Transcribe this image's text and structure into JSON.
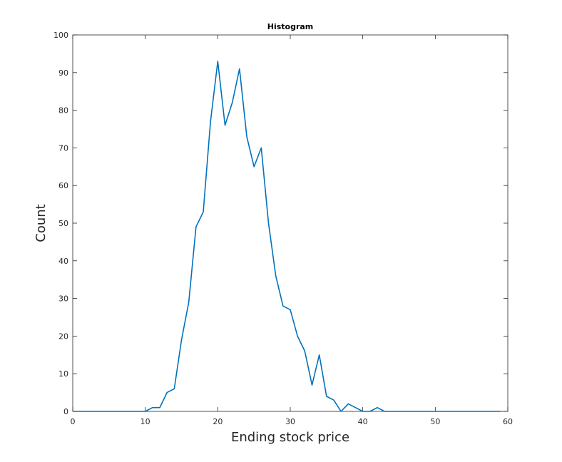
{
  "chart_data": {
    "type": "line",
    "title": "Histogram",
    "xlabel": "Ending stock price",
    "ylabel": "Count",
    "xlim": [
      0,
      60
    ],
    "ylim": [
      0,
      100
    ],
    "xticks": [
      0,
      10,
      20,
      30,
      40,
      50,
      60
    ],
    "yticks": [
      0,
      10,
      20,
      30,
      40,
      50,
      60,
      70,
      80,
      90,
      100
    ],
    "grid": false,
    "box": true,
    "series": [
      {
        "color": "#0072bd",
        "x": [
          0,
          1,
          2,
          3,
          4,
          5,
          6,
          7,
          8,
          9,
          10,
          11,
          12,
          13,
          14,
          15,
          16,
          17,
          18,
          19,
          20,
          21,
          22,
          23,
          24,
          25,
          26,
          27,
          28,
          29,
          30,
          31,
          32,
          33,
          34,
          35,
          36,
          37,
          38,
          39,
          40,
          41,
          42,
          43,
          44,
          45,
          46,
          47,
          48,
          49,
          50,
          51,
          52,
          53,
          54,
          55,
          56,
          57,
          58,
          59
        ],
        "values": [
          0,
          0,
          0,
          0,
          0,
          0,
          0,
          0,
          0,
          0,
          0,
          1,
          1,
          5,
          6,
          19,
          29,
          49,
          53,
          77,
          93,
          76,
          82,
          91,
          73,
          65,
          70,
          50,
          36,
          28,
          27,
          20,
          16,
          7,
          15,
          4,
          3,
          0,
          2,
          1,
          0,
          0,
          1,
          0,
          0,
          0,
          0,
          0,
          0,
          0,
          0,
          0,
          0,
          0,
          0,
          0,
          0,
          0,
          0,
          0
        ]
      }
    ]
  }
}
